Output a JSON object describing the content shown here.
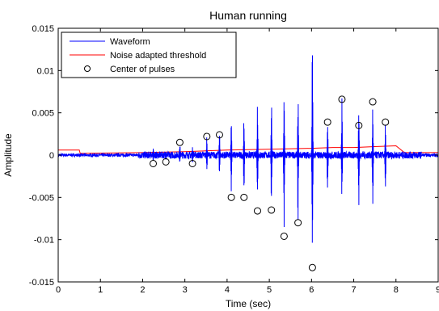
{
  "chart_data": {
    "type": "line",
    "title": "Human running",
    "xlabel": "Time (sec)",
    "ylabel": "Amplitude",
    "xlim": [
      0,
      9
    ],
    "ylim": [
      -0.015,
      0.015
    ],
    "xticks": [
      "0",
      "1",
      "2",
      "3",
      "4",
      "5",
      "6",
      "7",
      "8",
      "9"
    ],
    "yticks": [
      "0.015",
      "0.01",
      "0.005",
      "0",
      "-0.005",
      "-0.01",
      "-0.015"
    ],
    "legend_position": "top-left",
    "grid": false,
    "series": [
      {
        "name": "Waveform",
        "color": "#0000ff",
        "style": "line",
        "noise_amplitude": 0.0003,
        "bursts": [
          {
            "t": 2.25,
            "pos": 0.0008,
            "neg": -0.0009
          },
          {
            "t": 2.55,
            "pos": 0.0006,
            "neg": -0.0007
          },
          {
            "t": 2.88,
            "pos": 0.0015,
            "neg": -0.0012
          },
          {
            "t": 3.18,
            "pos": 0.001,
            "neg": -0.001
          },
          {
            "t": 3.52,
            "pos": 0.0022,
            "neg": -0.002
          },
          {
            "t": 3.82,
            "pos": 0.003,
            "neg": -0.0025
          },
          {
            "t": 4.1,
            "pos": 0.0042,
            "neg": -0.005
          },
          {
            "t": 4.4,
            "pos": 0.0045,
            "neg": -0.0048
          },
          {
            "t": 4.72,
            "pos": 0.0065,
            "neg": -0.0066
          },
          {
            "t": 5.05,
            "pos": 0.007,
            "neg": -0.0065
          },
          {
            "t": 5.35,
            "pos": 0.0078,
            "neg": -0.0095
          },
          {
            "t": 5.68,
            "pos": 0.0078,
            "neg": -0.0082
          },
          {
            "t": 6.02,
            "pos": 0.0135,
            "neg": -0.0133
          },
          {
            "t": 6.38,
            "pos": 0.004,
            "neg": -0.005
          },
          {
            "t": 6.72,
            "pos": 0.0068,
            "neg": -0.0062
          },
          {
            "t": 7.12,
            "pos": 0.006,
            "neg": -0.0075
          },
          {
            "t": 7.45,
            "pos": 0.006,
            "neg": -0.0068
          },
          {
            "t": 7.75,
            "pos": 0.0042,
            "neg": -0.004
          }
        ]
      },
      {
        "name": "Noise adapted threshold",
        "color": "#ff0000",
        "style": "line",
        "x": [
          0,
          0.5,
          0.52,
          2.0,
          3.0,
          4.0,
          5.0,
          6.0,
          6.5,
          7.0,
          7.5,
          8.0,
          8.2,
          8.5,
          9.0
        ],
        "y": [
          0.0006,
          0.0006,
          0.0002,
          0.0003,
          0.0004,
          0.0006,
          0.0007,
          0.0008,
          0.0009,
          0.0009,
          0.001,
          0.0011,
          0.0003,
          0.0003,
          0.0003
        ]
      },
      {
        "name": "Center of pulses",
        "color": "#000000",
        "style": "marker-circle",
        "x": [
          2.25,
          2.55,
          2.88,
          3.18,
          3.52,
          3.82,
          4.1,
          4.4,
          4.72,
          5.05,
          5.35,
          5.68,
          6.02,
          6.38,
          6.72,
          7.12,
          7.45,
          7.75
        ],
        "y": [
          -0.001,
          -0.0008,
          0.0015,
          -0.001,
          0.0022,
          0.0024,
          -0.005,
          -0.005,
          -0.0066,
          -0.0065,
          -0.0096,
          -0.008,
          -0.0133,
          0.0039,
          0.0066,
          0.0035,
          0.0063,
          0.0039
        ]
      }
    ]
  }
}
